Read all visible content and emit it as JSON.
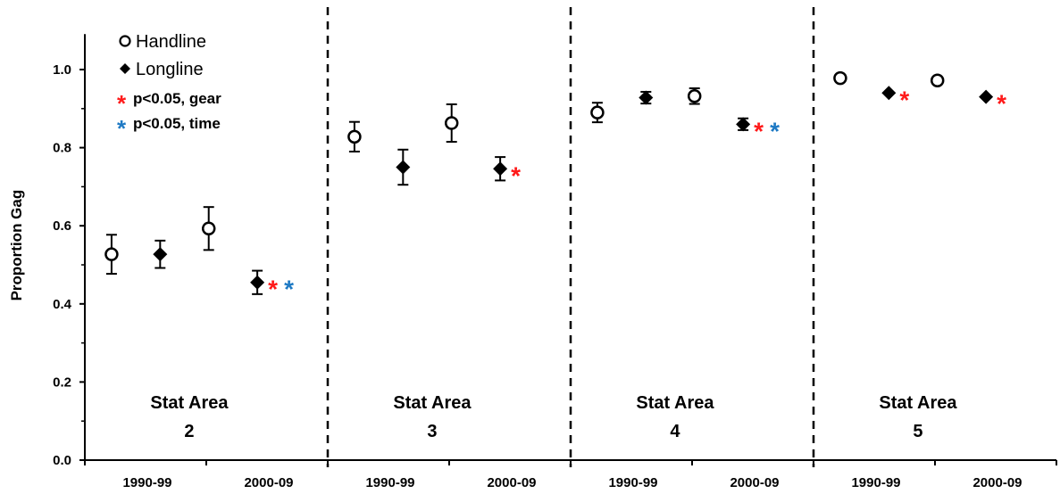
{
  "chart_data": {
    "type": "scatter",
    "ylabel": "Proportion Gag",
    "xlabel": "",
    "ylim": [
      0,
      1.1
    ],
    "yticks": [
      "0.0",
      "0.2",
      "0.4",
      "0.6",
      "0.8",
      "1.0"
    ],
    "panels": [
      {
        "label_line1": "Stat Area",
        "label_line2": "2",
        "categories": [
          "1990-99",
          "2000-09"
        ],
        "points": [
          {
            "gear": "Handline",
            "period": "1990-99",
            "value": 0.527,
            "err": 0.05,
            "markers": []
          },
          {
            "gear": "Longline",
            "period": "1990-99",
            "value": 0.527,
            "err": 0.035,
            "markers": []
          },
          {
            "gear": "Handline",
            "period": "2000-09",
            "value": 0.593,
            "err": 0.055,
            "markers": []
          },
          {
            "gear": "Longline",
            "period": "2000-09",
            "value": 0.455,
            "err": 0.03,
            "markers": [
              "gear",
              "time"
            ]
          }
        ]
      },
      {
        "label_line1": "Stat Area",
        "label_line2": "3",
        "categories": [
          "1990-99",
          "2000-09"
        ],
        "points": [
          {
            "gear": "Handline",
            "period": "1990-99",
            "value": 0.828,
            "err": 0.038,
            "markers": []
          },
          {
            "gear": "Longline",
            "period": "1990-99",
            "value": 0.75,
            "err": 0.045,
            "markers": []
          },
          {
            "gear": "Handline",
            "period": "2000-09",
            "value": 0.863,
            "err": 0.048,
            "markers": []
          },
          {
            "gear": "Longline",
            "period": "2000-09",
            "value": 0.746,
            "err": 0.03,
            "markers": [
              "gear"
            ]
          }
        ]
      },
      {
        "label_line1": "Stat Area",
        "label_line2": "4",
        "categories": [
          "1990-99",
          "2000-09"
        ],
        "points": [
          {
            "gear": "Handline",
            "period": "1990-99",
            "value": 0.89,
            "err": 0.025,
            "markers": []
          },
          {
            "gear": "Longline",
            "period": "1990-99",
            "value": 0.928,
            "err": 0.015,
            "markers": []
          },
          {
            "gear": "Handline",
            "period": "2000-09",
            "value": 0.932,
            "err": 0.02,
            "markers": []
          },
          {
            "gear": "Longline",
            "period": "2000-09",
            "value": 0.86,
            "err": 0.015,
            "markers": [
              "gear",
              "time"
            ]
          }
        ]
      },
      {
        "label_line1": "Stat Area",
        "label_line2": "5",
        "categories": [
          "1990-99",
          "2000-09"
        ],
        "points": [
          {
            "gear": "Handline",
            "period": "1990-99",
            "value": 0.978,
            "err": 0,
            "markers": []
          },
          {
            "gear": "Longline",
            "period": "1990-99",
            "value": 0.94,
            "err": 0,
            "markers": [
              "gear"
            ]
          },
          {
            "gear": "Handline",
            "period": "2000-09",
            "value": 0.972,
            "err": 0,
            "markers": []
          },
          {
            "gear": "Longline",
            "period": "2000-09",
            "value": 0.93,
            "err": 0,
            "markers": [
              "gear"
            ]
          }
        ]
      }
    ],
    "legend": {
      "position": "top-left",
      "handline": "Handline",
      "longline": "Longline",
      "gear_sig": "p<0.05, gear",
      "time_sig": "p<0.05, time"
    },
    "colors": {
      "gear_star": "#ff1a1a",
      "time_star": "#1f7ac4",
      "marker": "#000000"
    },
    "grid": false
  }
}
